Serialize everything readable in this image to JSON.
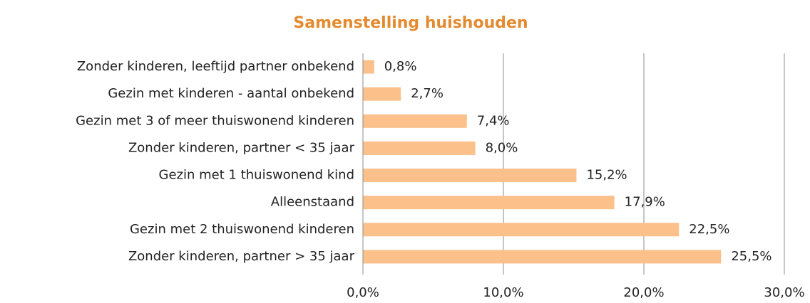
{
  "chart_data": {
    "type": "barh",
    "title": "Samenstelling huishouden",
    "categories": [
      "Zonder kinderen, leeftijd partner onbekend",
      "Gezin met kinderen - aantal onbekend",
      "Gezin met 3 of meer thuiswonend kinderen",
      "Zonder kinderen, partner < 35 jaar",
      "Gezin met 1 thuiswonend kind",
      "Alleenstaand",
      "Gezin met 2 thuiswonend kinderen",
      "Zonder kinderen, partner > 35 jaar"
    ],
    "values": [
      0.8,
      2.7,
      7.4,
      8.0,
      15.2,
      17.9,
      22.5,
      25.5
    ],
    "value_labels": [
      "0,8%",
      "2,7%",
      "7,4%",
      "8,0%",
      "15,2%",
      "17,9%",
      "22,5%",
      "25,5%"
    ],
    "color": "#fcc08b",
    "xlim": [
      0,
      30
    ],
    "xticks": [
      {
        "value": 0,
        "label": "0,0%"
      },
      {
        "value": 10,
        "label": "10,0%"
      },
      {
        "value": 20,
        "label": "20,0%"
      },
      {
        "value": 30,
        "label": "30,0%"
      }
    ],
    "grid": true
  }
}
